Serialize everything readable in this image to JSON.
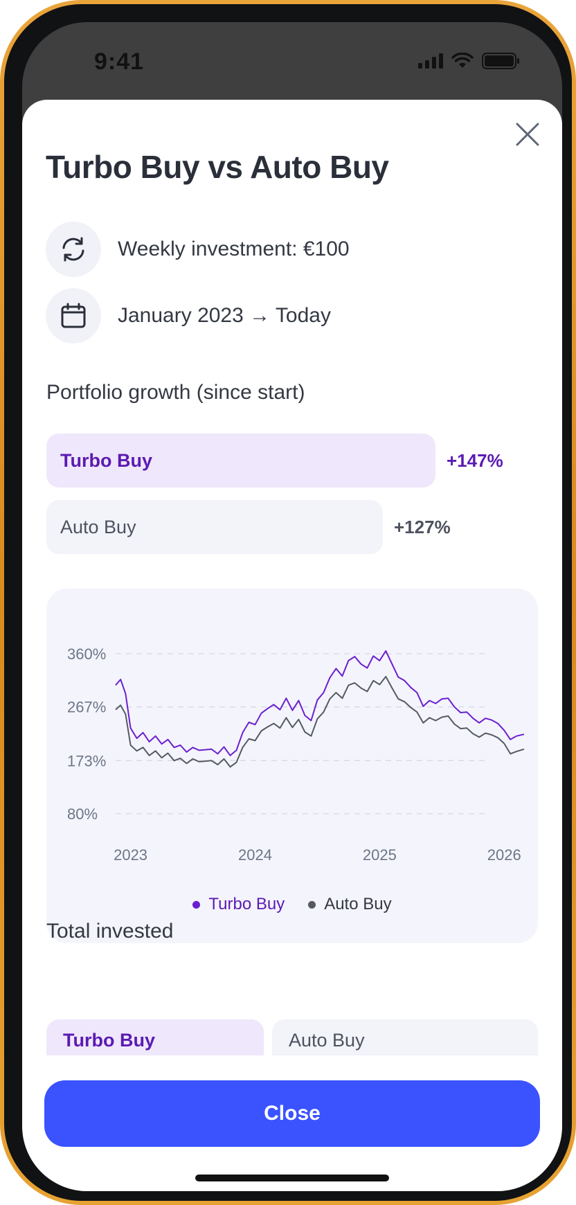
{
  "status_bar": {
    "time": "9:41"
  },
  "sheet": {
    "title": "Turbo Buy vs Auto Buy",
    "weekly_investment": "Weekly investment: €100",
    "period": "January 2023 → Today",
    "growth_label": "Portfolio growth (since start)",
    "bars": [
      {
        "name": "Turbo Buy",
        "value": "+147%",
        "fraction": 1.0,
        "color": "#5b1bb2"
      },
      {
        "name": "Auto Buy",
        "value": "+127%",
        "fraction": 0.864,
        "color": "#4d535e"
      }
    ],
    "total_invested_label": "Total invested",
    "total_cards": [
      "Turbo Buy",
      "Auto Buy"
    ],
    "close_button": "Close"
  },
  "chart_data": {
    "type": "line",
    "y_tick_labels": [
      "360%",
      "267%",
      "173%",
      "80%"
    ],
    "y_ticks": [
      360,
      267,
      173,
      80
    ],
    "x_tick_labels": [
      "2023",
      "2024",
      "2025",
      "2026"
    ],
    "x_ticks": [
      2023,
      2024,
      2025,
      2026
    ],
    "ylim": [
      80,
      360
    ],
    "xlim": [
      2022.88,
      2026.16
    ],
    "grid": true,
    "legend_position": "bottom-center",
    "series": [
      {
        "name": "Turbo Buy",
        "color": "#6a1fd0",
        "x": [
          2022.88,
          2022.92,
          2022.96,
          2023.0,
          2023.05,
          2023.1,
          2023.15,
          2023.2,
          2023.25,
          2023.3,
          2023.35,
          2023.4,
          2023.45,
          2023.5,
          2023.55,
          2023.6,
          2023.65,
          2023.7,
          2023.75,
          2023.8,
          2023.85,
          2023.9,
          2023.95,
          2024.0,
          2024.05,
          2024.1,
          2024.15,
          2024.2,
          2024.25,
          2024.3,
          2024.35,
          2024.4,
          2024.45,
          2024.5,
          2024.55,
          2024.6,
          2024.65,
          2024.7,
          2024.75,
          2024.8,
          2024.85,
          2024.9,
          2024.95,
          2025.0,
          2025.05,
          2025.1,
          2025.15,
          2025.2,
          2025.25,
          2025.3,
          2025.35,
          2025.4,
          2025.45,
          2025.5,
          2025.55,
          2025.6,
          2025.65,
          2025.7,
          2025.75,
          2025.8,
          2025.85,
          2025.9,
          2025.95,
          2026.0,
          2026.05,
          2026.1,
          2026.16
        ],
        "values": [
          305,
          315,
          290,
          230,
          212,
          222,
          206,
          216,
          202,
          210,
          196,
          200,
          188,
          196,
          191,
          192,
          193,
          185,
          197,
          182,
          191,
          222,
          240,
          236,
          256,
          264,
          271,
          262,
          282,
          261,
          278,
          252,
          243,
          279,
          292,
          318,
          334,
          321,
          348,
          355,
          342,
          335,
          356,
          348,
          365,
          342,
          319,
          313,
          301,
          292,
          268,
          278,
          273,
          281,
          282,
          267,
          257,
          258,
          247,
          239,
          247,
          244,
          238,
          226,
          210,
          216,
          219
        ]
      },
      {
        "name": "Auto Buy",
        "color": "#555a62",
        "x": [
          2022.88,
          2022.92,
          2022.96,
          2023.0,
          2023.05,
          2023.1,
          2023.15,
          2023.2,
          2023.25,
          2023.3,
          2023.35,
          2023.4,
          2023.45,
          2023.5,
          2023.55,
          2023.6,
          2023.65,
          2023.7,
          2023.75,
          2023.8,
          2023.85,
          2023.9,
          2023.95,
          2024.0,
          2024.05,
          2024.1,
          2024.15,
          2024.2,
          2024.25,
          2024.3,
          2024.35,
          2024.4,
          2024.45,
          2024.5,
          2024.55,
          2024.6,
          2024.65,
          2024.7,
          2024.75,
          2024.8,
          2024.85,
          2024.9,
          2024.95,
          2025.0,
          2025.05,
          2025.1,
          2025.15,
          2025.2,
          2025.25,
          2025.3,
          2025.35,
          2025.4,
          2025.45,
          2025.5,
          2025.55,
          2025.6,
          2025.65,
          2025.7,
          2025.75,
          2025.8,
          2025.85,
          2025.9,
          2025.95,
          2026.0,
          2026.05,
          2026.1,
          2026.16
        ],
        "values": [
          262,
          270,
          254,
          200,
          190,
          196,
          182,
          190,
          178,
          186,
          173,
          177,
          168,
          176,
          171,
          172,
          173,
          166,
          176,
          162,
          170,
          196,
          211,
          208,
          225,
          232,
          238,
          230,
          248,
          231,
          245,
          223,
          216,
          246,
          258,
          281,
          292,
          282,
          305,
          309,
          300,
          294,
          313,
          306,
          320,
          300,
          281,
          276,
          266,
          258,
          239,
          248,
          243,
          249,
          251,
          237,
          229,
          230,
          220,
          214,
          221,
          218,
          213,
          203,
          185,
          189,
          193
        ]
      }
    ]
  }
}
